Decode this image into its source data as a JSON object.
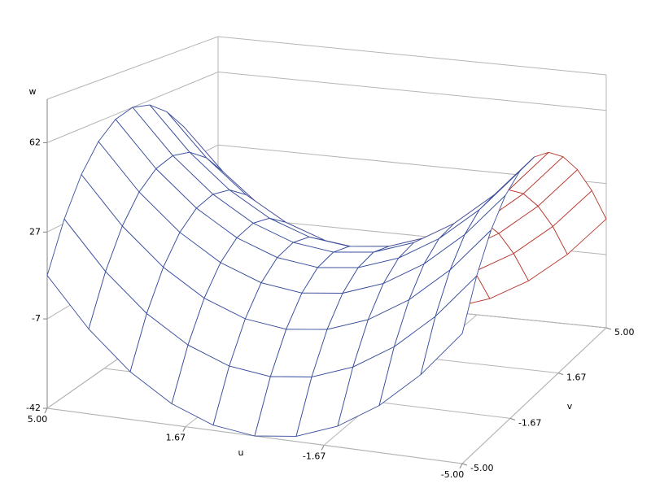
{
  "chart_data": {
    "type": "surface",
    "xlabel": "u",
    "ylabel": "v",
    "zlabel": "w",
    "x": [
      -5,
      -4,
      -3,
      -2,
      -1,
      0,
      1,
      2,
      3,
      4,
      5
    ],
    "y": [
      -5,
      -4,
      -3,
      -2,
      -1,
      0,
      1,
      2,
      3,
      4,
      5
    ],
    "z": [
      [
        10,
        28.72,
        43.28,
        53.68,
        59.92,
        62,
        59.92,
        53.68,
        43.28,
        28.72,
        10
      ],
      [
        -8.72,
        10,
        24.56,
        34.96,
        41.2,
        43.28,
        41.2,
        34.96,
        24.56,
        10,
        -8.72
      ],
      [
        -23.28,
        -4.56,
        10,
        20.4,
        26.64,
        28.72,
        26.64,
        20.4,
        10,
        -4.56,
        -23.28
      ],
      [
        -33.68,
        -14.96,
        -0.4,
        10,
        16.24,
        18.32,
        16.24,
        10,
        -0.4,
        -14.96,
        -33.68
      ],
      [
        -39.92,
        -21.2,
        -6.64,
        3.76,
        10,
        12.08,
        10,
        3.76,
        -6.64,
        -21.2,
        -39.92
      ],
      [
        -42,
        -23.28,
        -8.72,
        1.68,
        7.92,
        10,
        7.92,
        1.68,
        -8.72,
        -23.28,
        -42
      ],
      [
        -39.92,
        -21.2,
        -6.64,
        3.76,
        10,
        12.08,
        10,
        3.76,
        -6.64,
        -21.2,
        -39.92
      ],
      [
        -33.68,
        -14.96,
        -0.4,
        10,
        16.24,
        18.32,
        16.24,
        10,
        -0.4,
        -14.96,
        -33.68
      ],
      [
        -23.28,
        -4.56,
        10,
        20.4,
        26.64,
        28.72,
        26.64,
        20.4,
        10,
        -4.56,
        -23.28
      ],
      [
        -8.72,
        10,
        24.56,
        34.96,
        41.2,
        43.28,
        41.2,
        34.96,
        24.56,
        10,
        -8.72
      ],
      [
        10,
        28.72,
        43.28,
        53.68,
        59.92,
        62,
        59.92,
        53.68,
        43.28,
        28.72,
        10
      ]
    ],
    "xlim": [
      -5,
      5
    ],
    "ylim": [
      -5,
      5
    ],
    "zlim": [
      -42,
      79
    ],
    "xticks": [
      {
        "value": 5,
        "label": "5.00"
      },
      1.67,
      -1.67,
      {
        "value": -5,
        "label": "-5.00"
      }
    ],
    "yticks": [
      {
        "value": -5,
        "label": "-5.00"
      },
      -1.67,
      1.67,
      {
        "value": 5,
        "label": "5.00"
      }
    ],
    "zticks": [
      -42,
      -7,
      27,
      62
    ],
    "grid": true,
    "color": "#3a4f9e",
    "back_color": "#b8352b"
  }
}
